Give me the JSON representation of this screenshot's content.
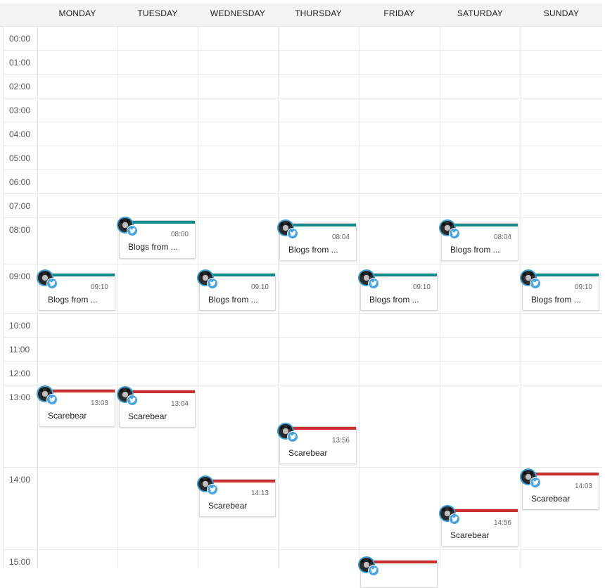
{
  "days": [
    "MONDAY",
    "TUESDAY",
    "WEDNESDAY",
    "THURSDAY",
    "FRIDAY",
    "SATURDAY",
    "SUNDAY"
  ],
  "hours": [
    "00:00",
    "01:00",
    "02:00",
    "03:00",
    "04:00",
    "05:00",
    "06:00",
    "07:00",
    "08:00",
    "09:00",
    "10:00",
    "11:00",
    "12:00",
    "13:00",
    "14:00",
    "15:00"
  ],
  "colors": {
    "teal": "#0f8c8a",
    "red": "#cc2d2d",
    "twitter": "#4aa4e0"
  },
  "events": [
    {
      "day": 1,
      "time": "08:00",
      "title": "Blogs from ...",
      "color": "teal"
    },
    {
      "day": 3,
      "time": "08:04",
      "title": "Blogs from ...",
      "color": "teal"
    },
    {
      "day": 5,
      "time": "08:04",
      "title": "Blogs from ...",
      "color": "teal"
    },
    {
      "day": 0,
      "time": "09:10",
      "title": "Blogs from ...",
      "color": "teal"
    },
    {
      "day": 2,
      "time": "09:10",
      "title": "Blogs from ...",
      "color": "teal"
    },
    {
      "day": 4,
      "time": "09:10",
      "title": "Blogs from ...",
      "color": "teal"
    },
    {
      "day": 6,
      "time": "09:10",
      "title": "Blogs from ...",
      "color": "teal"
    },
    {
      "day": 0,
      "time": "13:03",
      "title": "Scarebear",
      "color": "red"
    },
    {
      "day": 1,
      "time": "13:04",
      "title": "Scarebear",
      "color": "red"
    },
    {
      "day": 3,
      "time": "13:56",
      "title": "Scarebear",
      "color": "red"
    },
    {
      "day": 2,
      "time": "14:13",
      "title": "Scarebear",
      "color": "red"
    },
    {
      "day": 6,
      "time": "14:03",
      "title": "Scarebear",
      "color": "red"
    },
    {
      "day": 5,
      "time": "14:56",
      "title": "Scarebear",
      "color": "red"
    },
    {
      "day": 4,
      "time": "",
      "title": "",
      "color": "red"
    }
  ],
  "icons": {
    "avatar": "bear-avatar-icon",
    "badge": "twitter-icon"
  }
}
